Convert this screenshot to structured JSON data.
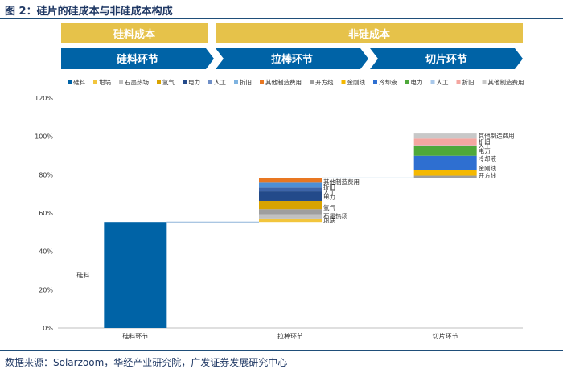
{
  "title": "图 2：硅片的硅成本与非硅成本构成",
  "source": "数据来源：Solarzoom，华经产业研究院，广发证券发展研究中心",
  "header_boxes": [
    {
      "label": "硅料成本"
    },
    {
      "label": "非硅成本"
    }
  ],
  "stage_arrows": [
    {
      "label": "硅料环节"
    },
    {
      "label": "拉棒环节"
    },
    {
      "label": "切片环节"
    }
  ],
  "colors": {
    "gold": "#e6c24a",
    "arrow_blue": "#0063a6",
    "title_blue": "#1f3864"
  },
  "chart_data": {
    "type": "bar",
    "subtype": "waterfall-stacked",
    "categories": [
      "硅料环节",
      "拉棒环节",
      "切片环节"
    ],
    "ylim": [
      0,
      120
    ],
    "yticks": [
      0,
      20,
      40,
      60,
      80,
      100,
      120
    ],
    "ytick_format": "percent",
    "grid": false,
    "legend_position": "top",
    "legend": [
      {
        "name": "硅料",
        "color": "#0063a6"
      },
      {
        "name": "坩埚",
        "color": "#f2c53d"
      },
      {
        "name": "石墨热场",
        "color": "#c0c0c0"
      },
      {
        "name": "氩气",
        "color": "#d9a300"
      },
      {
        "name": "电力",
        "color": "#234a8a"
      },
      {
        "name": "人工",
        "color": "#6f8fc7"
      },
      {
        "name": "折旧",
        "color": "#7fb3e0"
      },
      {
        "name": "其他制造费用",
        "color": "#e87722"
      },
      {
        "name": "开方线",
        "color": "#9e9e9e"
      },
      {
        "name": "金刚线",
        "color": "#f5b800"
      },
      {
        "name": "冷却液",
        "color": "#2e6fd1"
      },
      {
        "name": "电力",
        "color": "#4ea83a"
      },
      {
        "name": "人工",
        "color": "#a9c8ea"
      },
      {
        "name": "折旧",
        "color": "#f4a6a0"
      },
      {
        "name": "其他制造费用",
        "color": "#c8c8c8"
      }
    ],
    "stacks": [
      {
        "category": "硅料环节",
        "segments": [
          {
            "name": "硅料",
            "value": 55.3,
            "color": "#0063a6"
          }
        ],
        "segment_labels": [
          {
            "text": "硅料",
            "side": "left",
            "segment": 0
          }
        ]
      },
      {
        "category": "拉棒环节",
        "segments": [
          {
            "name": "坩埚",
            "value": 1.8,
            "color": "#f2c53d"
          },
          {
            "name": "石墨热场",
            "value": 2.2,
            "color": "#c0c0c0"
          },
          {
            "name": "氩气",
            "value": 2.7,
            "color": "#9e9e9e"
          },
          {
            "name": "氩气",
            "value": 4.3,
            "color": "#d9a300"
          },
          {
            "name": "电力",
            "value": 5.0,
            "color": "#234a8a"
          },
          {
            "name": "人工",
            "value": 2.0,
            "color": "#3d64a8"
          },
          {
            "name": "折旧",
            "value": 2.5,
            "color": "#4d8fd6"
          },
          {
            "name": "其他制造费用",
            "value": 2.5,
            "color": "#e87722"
          }
        ],
        "segment_labels": [
          {
            "text": "坩埚",
            "value": 56.2
          },
          {
            "text": "石墨热场",
            "value": 58.5
          },
          {
            "text": "氩气",
            "value": 63.0
          },
          {
            "text": "电力",
            "value": 68.6
          },
          {
            "text": "人工",
            "value": 71.0
          },
          {
            "text": "折旧",
            "value": 73.8
          },
          {
            "text": "其他制造费用",
            "value": 76.4
          }
        ]
      },
      {
        "category": "切片环节",
        "segments": [
          {
            "name": "开方线",
            "value": 1.2,
            "color": "#9e9e9e"
          },
          {
            "name": "金刚线",
            "value": 3.0,
            "color": "#f5b800"
          },
          {
            "name": "冷却液",
            "value": 7.4,
            "color": "#2e6fd1"
          },
          {
            "name": "电力",
            "value": 5.0,
            "color": "#4ea83a"
          },
          {
            "name": "人工",
            "value": 0.5,
            "color": "#a9c8ea"
          },
          {
            "name": "折旧",
            "value": 3.5,
            "color": "#f4a6a0"
          },
          {
            "name": "其他制造费用",
            "value": 2.6,
            "color": "#c8c8c8"
          }
        ],
        "segment_labels": [
          {
            "text": "开方线",
            "value": 79.8
          },
          {
            "text": "金刚线",
            "value": 83.4
          },
          {
            "text": "冷却液",
            "value": 88.5
          },
          {
            "text": "电力",
            "value": 92.6
          },
          {
            "text": "人工",
            "value": 95.2
          },
          {
            "text": "折旧",
            "value": 97.4
          },
          {
            "text": "其他制造费用",
            "value": 100.5
          }
        ]
      }
    ]
  }
}
